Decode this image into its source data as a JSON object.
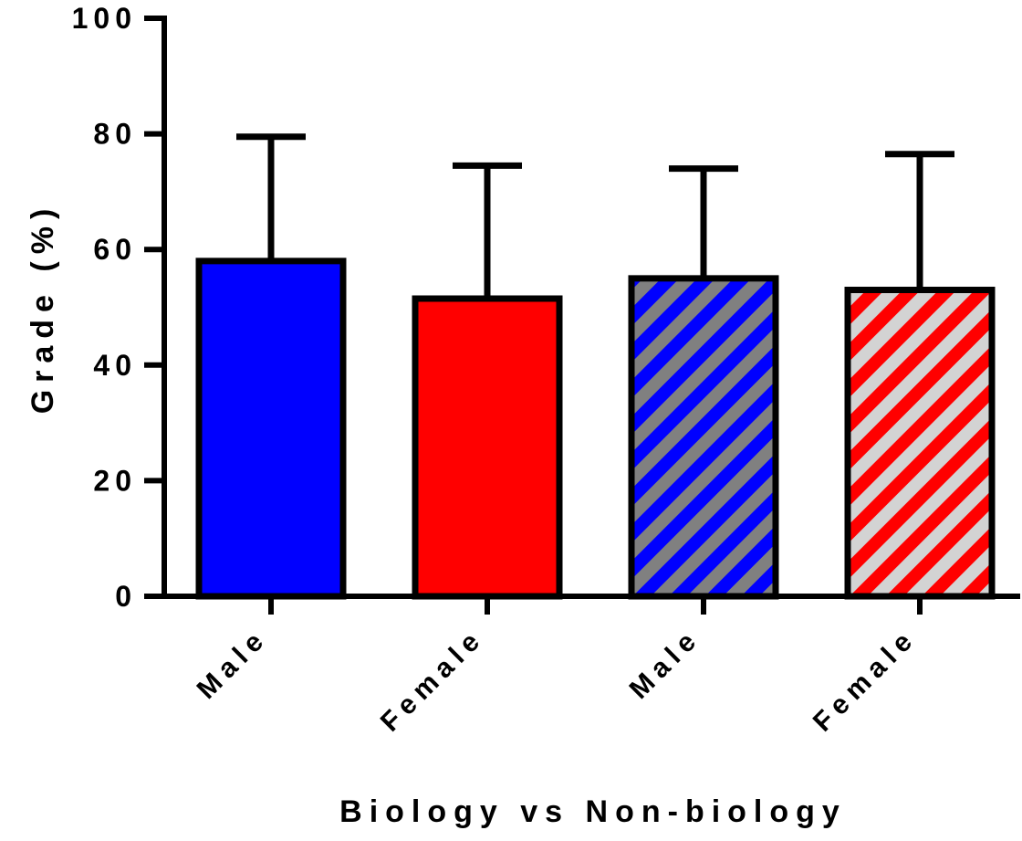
{
  "chart_data": {
    "type": "bar",
    "xlabel": "Biology vs Non-biology",
    "ylabel": "Grade (%)",
    "ylim": [
      0,
      100
    ],
    "yticks": [
      "0",
      "20",
      "40",
      "60",
      "80",
      "100"
    ],
    "categories": [
      "Male",
      "Female",
      "Male",
      "Female"
    ],
    "values": [
      58,
      51.5,
      55,
      53
    ],
    "error_upper": [
      79.5,
      74.5,
      74,
      76.5
    ],
    "grid": false,
    "legend": "none",
    "bar_styles": [
      {
        "fill": "#0000ff",
        "pattern": "solid",
        "stripe": ""
      },
      {
        "fill": "#ff0000",
        "pattern": "solid",
        "stripe": ""
      },
      {
        "fill": "#0000ff",
        "pattern": "diagonal-stripes",
        "stripe": "#808080"
      },
      {
        "fill": "#ff0000",
        "pattern": "diagonal-stripes",
        "stripe": "#d3d3d3"
      }
    ],
    "outline_color": "#000000"
  }
}
